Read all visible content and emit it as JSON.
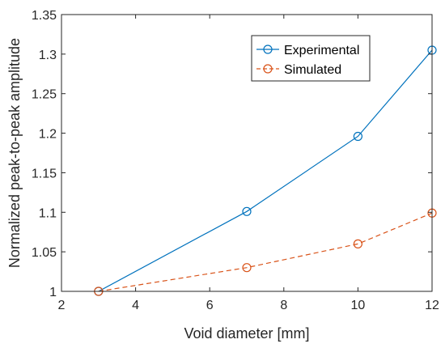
{
  "chart_data": {
    "type": "line",
    "title": "",
    "xlabel": "Void diameter [mm]",
    "ylabel": "Normalized peak-to-peak amplitude",
    "xlim": [
      2,
      12
    ],
    "ylim": [
      1,
      1.35
    ],
    "xticks": [
      2,
      4,
      6,
      8,
      10,
      12
    ],
    "yticks": [
      1,
      1.05,
      1.1,
      1.15,
      1.2,
      1.25,
      1.3,
      1.35
    ],
    "xtick_labels": [
      "2",
      "4",
      "6",
      "8",
      "10",
      "12"
    ],
    "ytick_labels": [
      "1",
      "1.05",
      "1.1",
      "1.15",
      "1.2",
      "1.25",
      "1.3",
      "1.35"
    ],
    "grid": false,
    "legend_position": "top-right",
    "series": [
      {
        "name": "Experimental",
        "color": "#0072BD",
        "line_style": "solid",
        "marker": "circle",
        "x": [
          3,
          7,
          10,
          12
        ],
        "y": [
          1.0,
          1.101,
          1.196,
          1.305
        ]
      },
      {
        "name": "Simulated",
        "color": "#D95319",
        "line_style": "dashed",
        "marker": "circle",
        "x": [
          3,
          7,
          10,
          12
        ],
        "y": [
          1.0,
          1.03,
          1.06,
          1.099
        ]
      }
    ]
  }
}
